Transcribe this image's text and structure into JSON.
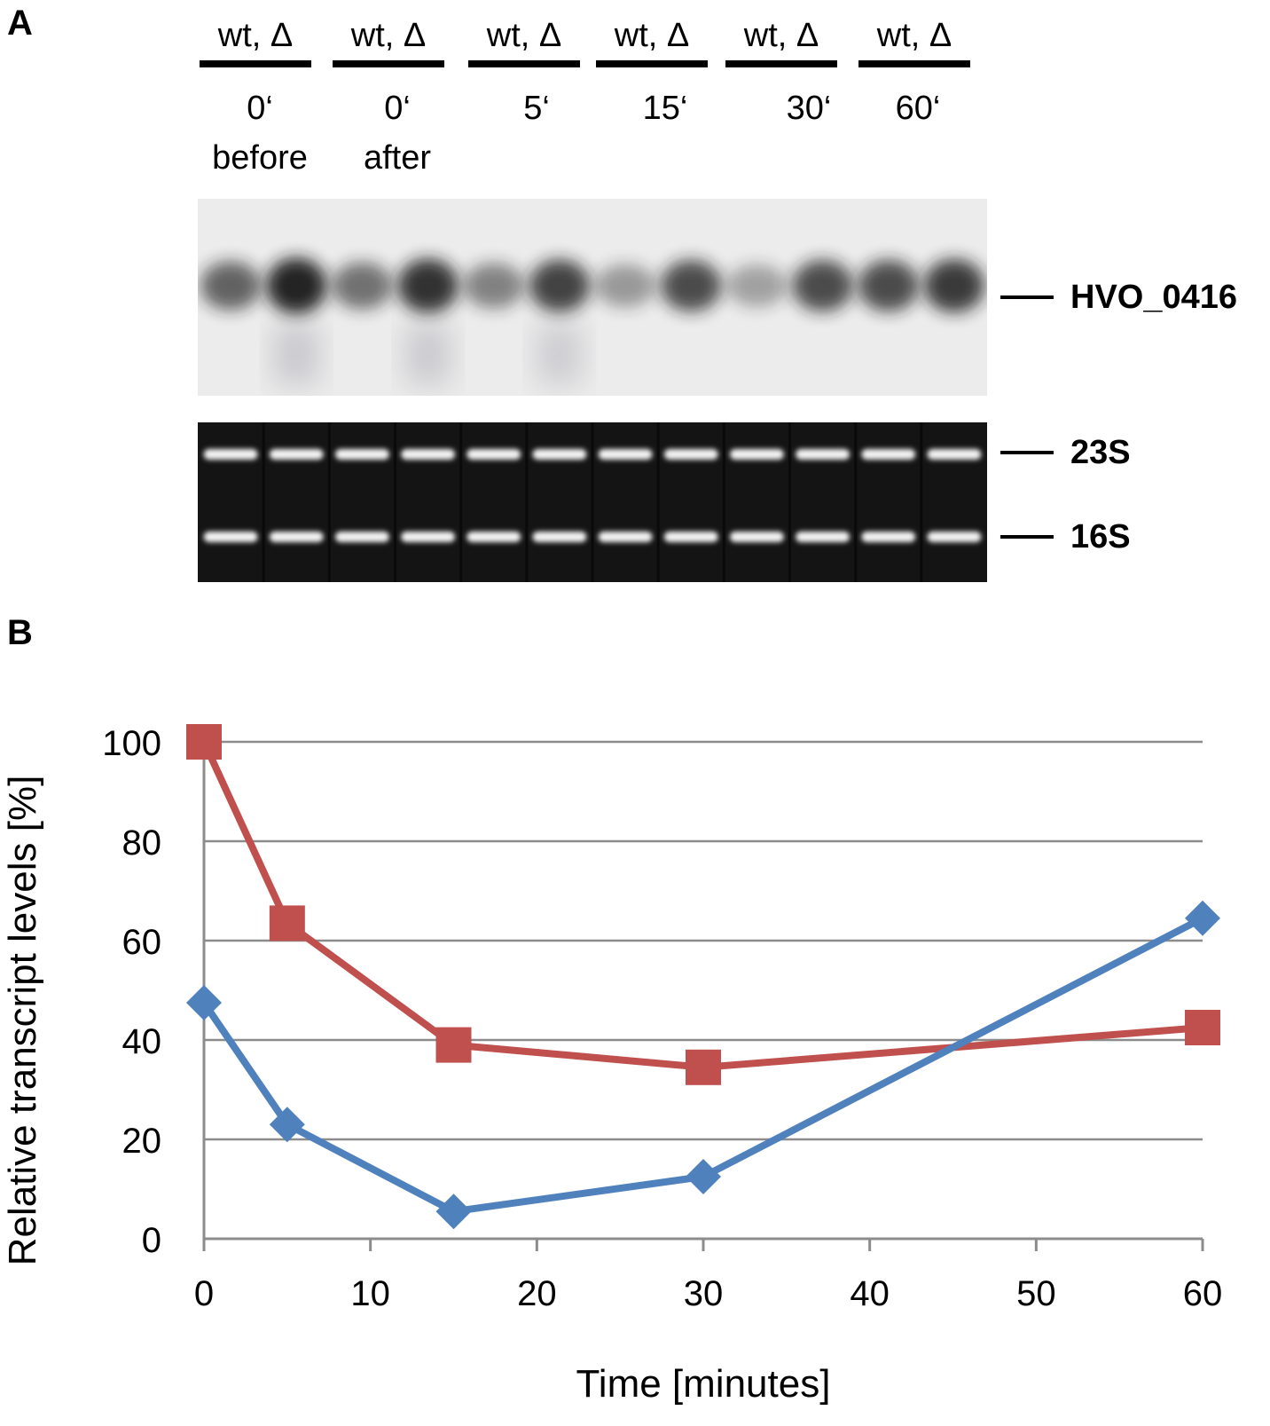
{
  "panel_a": {
    "label": "A",
    "lane_groups": [
      {
        "header": "wt, Δ",
        "time": "0‘",
        "time_sub": "before"
      },
      {
        "header": "wt, Δ",
        "time": "0‘",
        "time_sub": "after"
      },
      {
        "header": "wt, Δ",
        "time": "5‘",
        "time_sub": ""
      },
      {
        "header": "wt, Δ",
        "time": "15‘",
        "time_sub": ""
      },
      {
        "header": "wt, Δ",
        "time": "30‘",
        "time_sub": ""
      },
      {
        "header": "wt, Δ",
        "time": "60‘",
        "time_sub": ""
      }
    ],
    "northern_label": "HVO_0416",
    "rrna_labels": [
      "23S",
      "16S"
    ],
    "northern_band_intensity": [
      0.55,
      0.95,
      0.45,
      0.85,
      0.35,
      0.75,
      0.2,
      0.7,
      0.15,
      0.7,
      0.7,
      0.8
    ],
    "colors": {
      "northern_bg": "#ececec",
      "band": "#1a1a1a",
      "gel_bg": "#141414",
      "rrna": "#f2f2f2"
    }
  },
  "panel_b": {
    "label": "B"
  },
  "chart_data": {
    "type": "line",
    "xlabel": "Time [minutes]",
    "ylabel": "Relative transcript levels [%]",
    "xlim": [
      0,
      60
    ],
    "ylim": [
      0,
      100
    ],
    "xticks": [
      0,
      10,
      20,
      30,
      40,
      50,
      60
    ],
    "yticks": [
      0,
      20,
      40,
      60,
      80,
      100
    ],
    "grid": "horizontal",
    "series": [
      {
        "marker": "square",
        "color": "#c0504d",
        "x": [
          0,
          5,
          15,
          30,
          60
        ],
        "y": [
          100,
          63.5,
          39,
          34.5,
          42.5
        ]
      },
      {
        "marker": "diamond",
        "color": "#4f81bd",
        "x": [
          0,
          5,
          15,
          30,
          60
        ],
        "y": [
          47.5,
          23,
          5.5,
          12.5,
          64.5
        ]
      }
    ]
  }
}
